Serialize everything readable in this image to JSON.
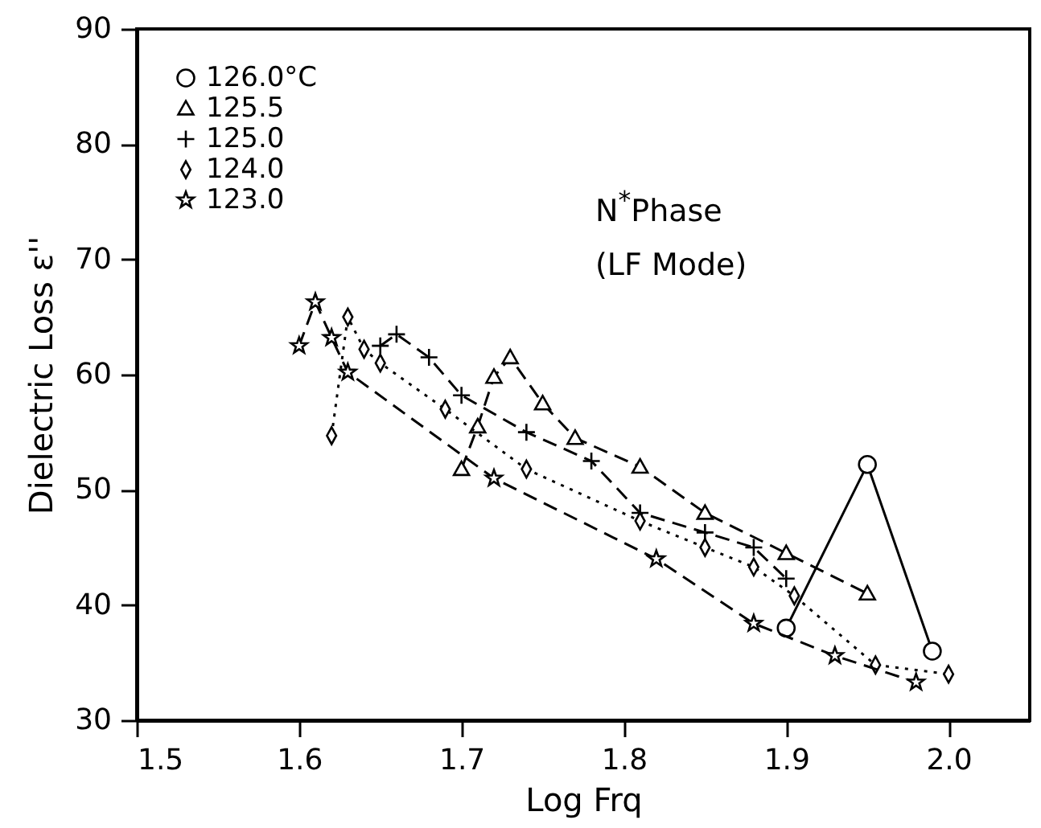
{
  "chart_data": {
    "type": "line",
    "xlabel": "Log Frq",
    "ylabel": "Dielectric Loss ε''",
    "annotations": [
      "N$^{*}$Phase",
      "(LF Mode)"
    ],
    "xlim": [
      1.5,
      2.05
    ],
    "xticks": [
      {
        "value": 1.5,
        "label": "1.5"
      },
      {
        "value": 1.6,
        "label": "1.6"
      },
      {
        "value": 1.7,
        "label": "1.7"
      },
      {
        "value": 1.8,
        "label": "1.8"
      },
      {
        "value": 1.9,
        "label": "1.9"
      },
      {
        "value": 2.0,
        "label": "2.0"
      }
    ],
    "ylim": [
      30,
      90
    ],
    "yticks": [
      30,
      40,
      50,
      60,
      70,
      80,
      90
    ],
    "grid": false,
    "legend": "top left",
    "series": [
      {
        "name": "126.0°C",
        "color": "#000000",
        "marker": "circle",
        "line_style": "solid",
        "x": [
          1.9,
          1.95,
          1.99
        ],
        "values": [
          38,
          52.2,
          36
        ]
      },
      {
        "name": "125.5",
        "color": "#000000",
        "marker": "triangle",
        "line_style": "dashed",
        "x": [
          1.7,
          1.71,
          1.72,
          1.73,
          1.75,
          1.77,
          1.81,
          1.85,
          1.9,
          1.95
        ],
        "values": [
          51.8,
          55.5,
          59.8,
          61.5,
          57.5,
          54.5,
          52,
          48,
          44.5,
          41
        ]
      },
      {
        "name": "125.0",
        "color": "#000000",
        "marker": "cross",
        "line_style": "dashed",
        "x": [
          1.65,
          1.66,
          1.68,
          1.7,
          1.74,
          1.78,
          1.81,
          1.85,
          1.88,
          1.9
        ],
        "values": [
          62.5,
          63.5,
          61.5,
          58.2,
          55,
          52.5,
          48,
          46.3,
          45,
          42.3
        ]
      },
      {
        "name": "124.0",
        "color": "#000000",
        "marker": "diamond",
        "line_style": "dotted",
        "x": [
          1.62,
          1.63,
          1.64,
          1.65,
          1.69,
          1.74,
          1.81,
          1.85,
          1.88,
          1.905,
          1.955,
          2.0
        ],
        "values": [
          54.7,
          65,
          62.2,
          61,
          57,
          51.8,
          47.3,
          45,
          43.3,
          40.8,
          34.8,
          34
        ]
      },
      {
        "name": "123.0",
        "color": "#000000",
        "marker": "star",
        "line_style": "dashed",
        "x": [
          1.6,
          1.61,
          1.62,
          1.63,
          1.72,
          1.82,
          1.88,
          1.93,
          1.98
        ],
        "values": [
          62.5,
          66.3,
          63.2,
          60.2,
          51,
          44,
          38.4,
          35.6,
          33.3
        ]
      }
    ]
  }
}
